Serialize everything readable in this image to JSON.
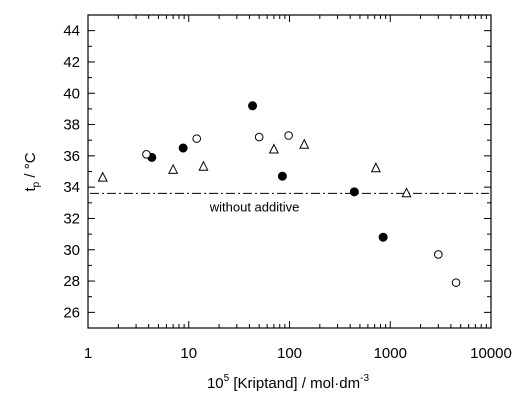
{
  "chart_data": {
    "type": "scatter",
    "xscale": "log",
    "xlim": [
      1,
      10000
    ],
    "ylim": [
      25,
      45
    ],
    "x_ticks": [
      1,
      10,
      100,
      1000,
      10000
    ],
    "x_tick_labels": [
      "1",
      "10",
      "100",
      "1000",
      "10000"
    ],
    "y_ticks": [
      26,
      28,
      30,
      32,
      34,
      36,
      38,
      40,
      42,
      44
    ],
    "y_tick_labels": [
      "26",
      "28",
      "30",
      "32",
      "34",
      "36",
      "38",
      "40",
      "42",
      "44"
    ],
    "ylabel_main": "t",
    "ylabel_sub": "p",
    "ylabel_rest": " / °C",
    "xlabel_pre": "10",
    "xlabel_sup": "5",
    "xlabel_mid": " [Kriptand] / mol·dm",
    "xlabel_sup2": "-3",
    "grid": false,
    "reference_line": {
      "y": 33.6,
      "style": "dash-dot",
      "label": "without additive"
    },
    "series": [
      {
        "marker": "filled-circle",
        "points": [
          {
            "x": 4.3,
            "y": 35.9
          },
          {
            "x": 8.8,
            "y": 36.5
          },
          {
            "x": 43,
            "y": 39.2
          },
          {
            "x": 85,
            "y": 34.7
          },
          {
            "x": 440,
            "y": 33.7
          },
          {
            "x": 850,
            "y": 30.8
          }
        ]
      },
      {
        "marker": "open-circle",
        "points": [
          {
            "x": 3.8,
            "y": 36.1
          },
          {
            "x": 12,
            "y": 37.1
          },
          {
            "x": 50,
            "y": 37.2
          },
          {
            "x": 98,
            "y": 37.3
          },
          {
            "x": 3000,
            "y": 29.7
          },
          {
            "x": 4500,
            "y": 27.9
          }
        ]
      },
      {
        "marker": "open-triangle",
        "points": [
          {
            "x": 1.4,
            "y": 34.6
          },
          {
            "x": 7,
            "y": 35.1
          },
          {
            "x": 14,
            "y": 35.3
          },
          {
            "x": 70,
            "y": 36.4
          },
          {
            "x": 140,
            "y": 36.7
          },
          {
            "x": 720,
            "y": 35.2
          },
          {
            "x": 1450,
            "y": 33.6
          }
        ]
      }
    ]
  }
}
